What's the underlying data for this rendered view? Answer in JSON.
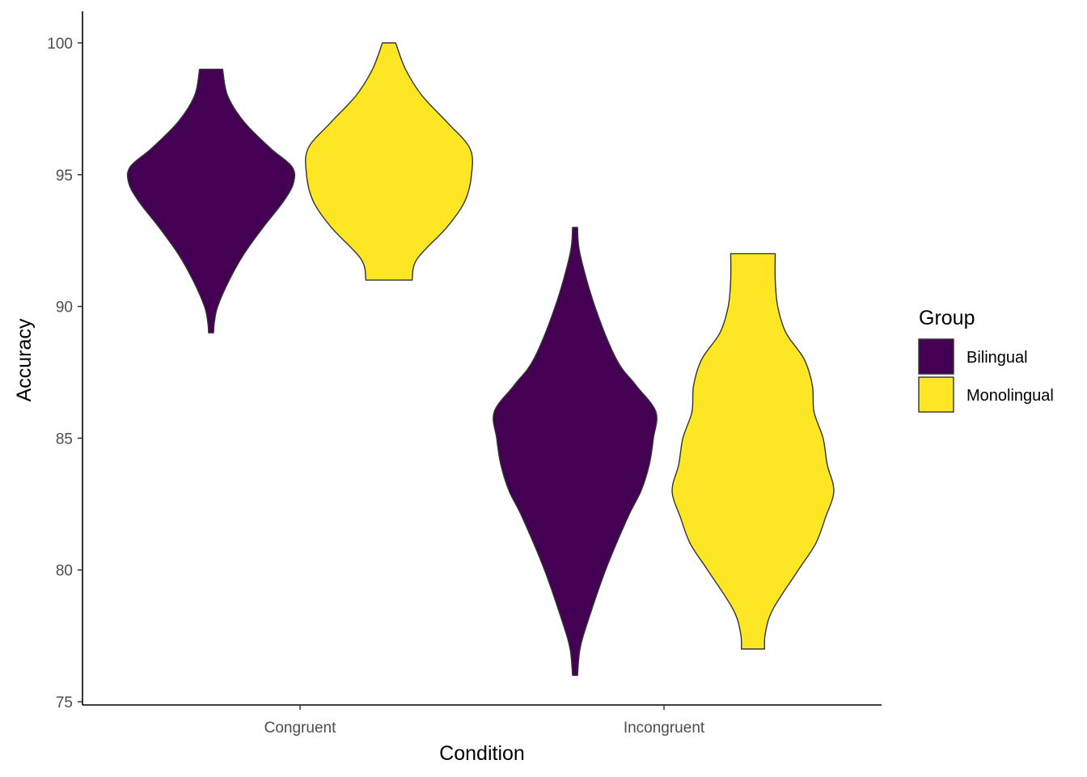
{
  "chart_data": {
    "type": "violin",
    "xlabel": "Condition",
    "ylabel": "Accuracy",
    "categories": [
      "Congruent",
      "Incongruent"
    ],
    "ylim": [
      75,
      100
    ],
    "yticks": [
      75,
      80,
      85,
      90,
      95,
      100
    ],
    "grid": false,
    "legend": {
      "title": "Group",
      "position": "right",
      "entries": [
        {
          "name": "Bilingual",
          "color": "#440154"
        },
        {
          "name": "Monolingual",
          "color": "#FDE725"
        }
      ]
    },
    "series": [
      {
        "name": "Bilingual",
        "color": "#440154",
        "violins": [
          {
            "category": "Congruent",
            "range": [
              89,
              99
            ],
            "density": [
              [
                89,
                0.03
              ],
              [
                89.4,
                0.04
              ],
              [
                90,
                0.08
              ],
              [
                91,
                0.22
              ],
              [
                92,
                0.4
              ],
              [
                93,
                0.63
              ],
              [
                94,
                0.88
              ],
              [
                94.7,
                1.0
              ],
              [
                95.3,
                0.98
              ],
              [
                96,
                0.72
              ],
              [
                97,
                0.4
              ],
              [
                98,
                0.2
              ],
              [
                99,
                0.14
              ]
            ]
          },
          {
            "category": "Incongruent",
            "range": [
              76,
              93
            ],
            "density": [
              [
                76,
                0.03
              ],
              [
                77,
                0.06
              ],
              [
                78,
                0.15
              ],
              [
                80,
                0.37
              ],
              [
                82,
                0.64
              ],
              [
                83,
                0.8
              ],
              [
                84,
                0.9
              ],
              [
                85,
                0.95
              ],
              [
                86,
                0.98
              ],
              [
                87,
                0.74
              ],
              [
                88,
                0.5
              ],
              [
                90,
                0.24
              ],
              [
                92,
                0.06
              ],
              [
                93,
                0.03
              ]
            ]
          }
        ]
      },
      {
        "name": "Monolingual",
        "color": "#FDE725",
        "violins": [
          {
            "category": "Congruent",
            "range": [
              91,
              100
            ],
            "density": [
              [
                91,
                0.28
              ],
              [
                91.8,
                0.34
              ],
              [
                93,
                0.7
              ],
              [
                94,
                0.92
              ],
              [
                95,
                1.0
              ],
              [
                96,
                0.98
              ],
              [
                97,
                0.7
              ],
              [
                98,
                0.4
              ],
              [
                99,
                0.2
              ],
              [
                100,
                0.08
              ]
            ]
          },
          {
            "category": "Incongruent",
            "range": [
              77,
              92
            ],
            "density": [
              [
                77,
                0.14
              ],
              [
                77.6,
                0.15
              ],
              [
                78.5,
                0.24
              ],
              [
                80,
                0.55
              ],
              [
                81,
                0.76
              ],
              [
                82,
                0.88
              ],
              [
                83,
                0.98
              ],
              [
                84,
                0.9
              ],
              [
                85,
                0.85
              ],
              [
                86,
                0.74
              ],
              [
                87,
                0.72
              ],
              [
                88,
                0.62
              ],
              [
                89,
                0.4
              ],
              [
                90,
                0.3
              ],
              [
                91,
                0.27
              ],
              [
                92,
                0.27
              ]
            ]
          }
        ]
      }
    ]
  }
}
